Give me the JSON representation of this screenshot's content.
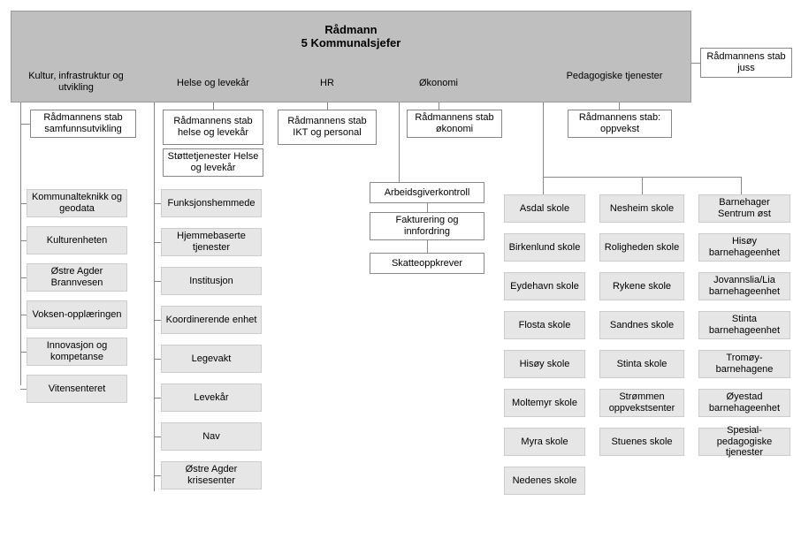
{
  "diagram": {
    "type": "org-chart",
    "background_color": "#ffffff",
    "header_bg": "#bfbfbf",
    "whitebox_bg": "#ffffff",
    "greybox_bg": "#e6e6e6",
    "border_color": "#888888",
    "font_family": "Arial",
    "font_size_header": 13,
    "font_size_body": 11,
    "header": {
      "line1": "Rådmann",
      "line2": "5 Kommunalsjefer"
    },
    "side_box": "Rådmannens stab juss",
    "departments": [
      {
        "id": "kultur",
        "label": "Kultur, infrastruktur og utvikling"
      },
      {
        "id": "helse",
        "label": "Helse og levekår"
      },
      {
        "id": "hr",
        "label": "HR"
      },
      {
        "id": "okonomi",
        "label": "Økonomi"
      },
      {
        "id": "pedagogiske",
        "label": "Pedagogiske tjenester"
      }
    ],
    "stabs": {
      "kultur": "Rådmannens stab samfunnsutvikling",
      "helse1": "Rådmannens stab helse og levekår",
      "helse2": "Støttetjenester Helse og levekår",
      "hr": "Rådmannens stab IKT og personal",
      "okonomi": "Rådmannens stab økonomi",
      "pedagogiske": "Rådmannens stab: oppvekst"
    },
    "okonomi_chain": [
      "Arbeidsgiverkontroll",
      "Fakturering og innfordring",
      "Skatteoppkrever"
    ],
    "kultur_units": [
      "Kommunalteknikk og geodata",
      "Kulturenheten",
      "Østre Agder Brannvesen",
      "Voksen-opplæringen",
      "Innovasjon og kompetanse",
      "Vitensenteret"
    ],
    "helse_units": [
      "Funksjonshemmede",
      "Hjemmebaserte tjenester",
      "Institusjon",
      "Koordinerende enhet",
      "Legevakt",
      "Levekår",
      "Nav",
      "Østre Agder krisesenter"
    ],
    "ped_col1": [
      "Asdal skole",
      "Birkenlund skole",
      "Eydehavn skole",
      "Flosta skole",
      "Hisøy skole",
      "Moltemyr skole",
      "Myra skole",
      "Nedenes skole"
    ],
    "ped_col2": [
      "Nesheim skole",
      "Roligheden skole",
      "Rykene skole",
      "Sandnes skole",
      "Stinta skole",
      "Strømmen oppvekstsenter",
      "Stuenes skole"
    ],
    "ped_col3": [
      "Barnehager Sentrum øst",
      "Hisøy barnehageenhet",
      "Jovannslia/Lia barnehageenhet",
      "Stinta barnehageenhet",
      "Tromøy-barnehagene",
      "Øyestad barnehageenhet",
      "Spesial-pedagogiske tjenester"
    ]
  }
}
